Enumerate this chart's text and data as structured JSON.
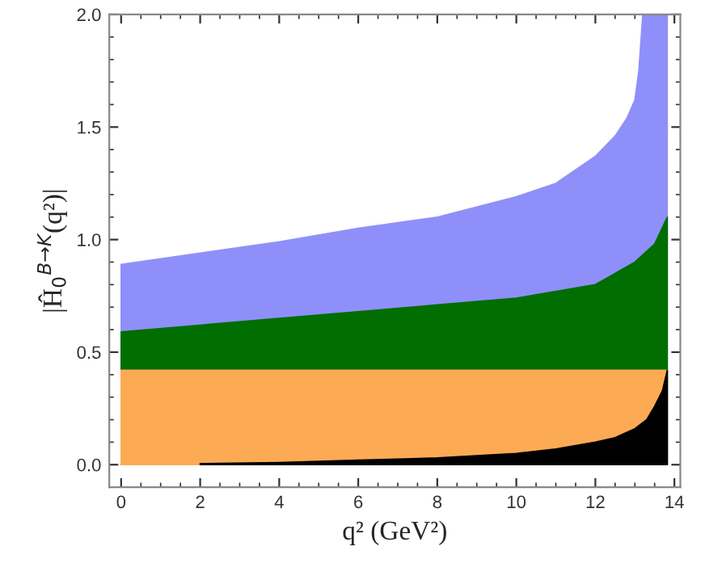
{
  "chart_data": {
    "type": "area",
    "xlabel": "q² (GeV²)",
    "ylabel": "|Ĥ$_{0}$$^{B→K}$(q²)|",
    "xlim": [
      -0.3,
      14.15
    ],
    "ylim": [
      -0.1,
      2.0
    ],
    "xticks": [
      0,
      2,
      4,
      6,
      8,
      10,
      12,
      14
    ],
    "yticks": [
      {
        "value": 0,
        "label": "0.0"
      },
      {
        "value": 0.5,
        "label": "0.5"
      },
      {
        "value": 1,
        "label": "1.0"
      },
      {
        "value": 1.5,
        "label": "1.5"
      },
      {
        "value": 2,
        "label": "2.0"
      }
    ],
    "grid": false,
    "series": [
      {
        "color": "#8f8ffa",
        "x": [
          0,
          2,
          4,
          6,
          8,
          10,
          11,
          12,
          12.5,
          12.8,
          13,
          13.1,
          13.2,
          13.82
        ],
        "values": [
          0.89,
          0.94,
          0.99,
          1.05,
          1.1,
          1.19,
          1.25,
          1.37,
          1.46,
          1.54,
          1.62,
          1.75,
          2.0,
          2.0
        ]
      },
      {
        "color": "#006e00",
        "x": [
          0,
          2,
          4,
          6,
          8,
          10,
          12,
          13,
          13.5,
          13.82
        ],
        "values": [
          0.59,
          0.62,
          0.65,
          0.68,
          0.71,
          0.74,
          0.8,
          0.9,
          0.98,
          1.1
        ]
      },
      {
        "color": "#fdaa55",
        "x": [
          0,
          13.82
        ],
        "values": [
          0.42,
          0.42
        ]
      },
      {
        "color": "#000000",
        "x": [
          2,
          4,
          6,
          8,
          10,
          11,
          12,
          12.5,
          13,
          13.3,
          13.5,
          13.7,
          13.82
        ],
        "values": [
          0.005,
          0.01,
          0.02,
          0.03,
          0.05,
          0.07,
          0.1,
          0.12,
          0.16,
          0.2,
          0.26,
          0.33,
          0.42
        ]
      }
    ]
  }
}
